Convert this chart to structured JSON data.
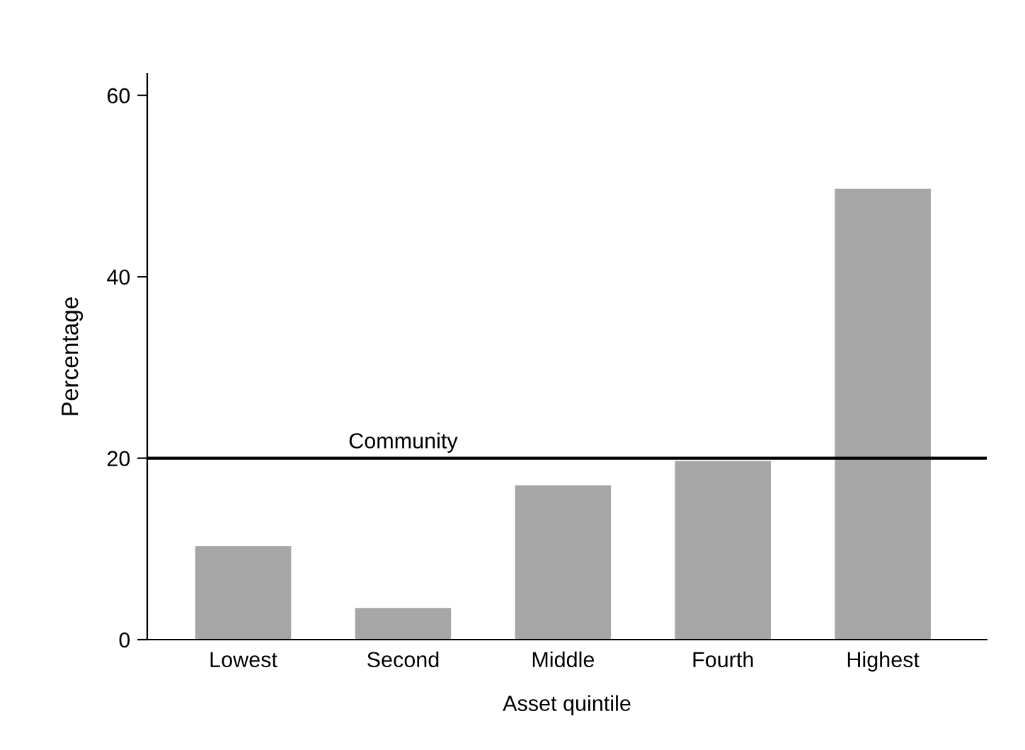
{
  "chart_data": {
    "type": "bar",
    "xlabel": "Asset quintile",
    "ylabel": "Percentage",
    "categories": [
      "Lowest",
      "Second",
      "Middle",
      "Fourth",
      "Highest"
    ],
    "values": [
      10.3,
      3.5,
      17.0,
      19.7,
      49.7
    ],
    "color": "#a6a6a6",
    "ylim": [
      0,
      62.4
    ],
    "yticks": [
      0,
      20,
      40,
      60
    ],
    "grid": false,
    "ref_lines": [
      {
        "axis": "y",
        "value": 20,
        "label": "Community",
        "color": "#000000"
      }
    ]
  }
}
